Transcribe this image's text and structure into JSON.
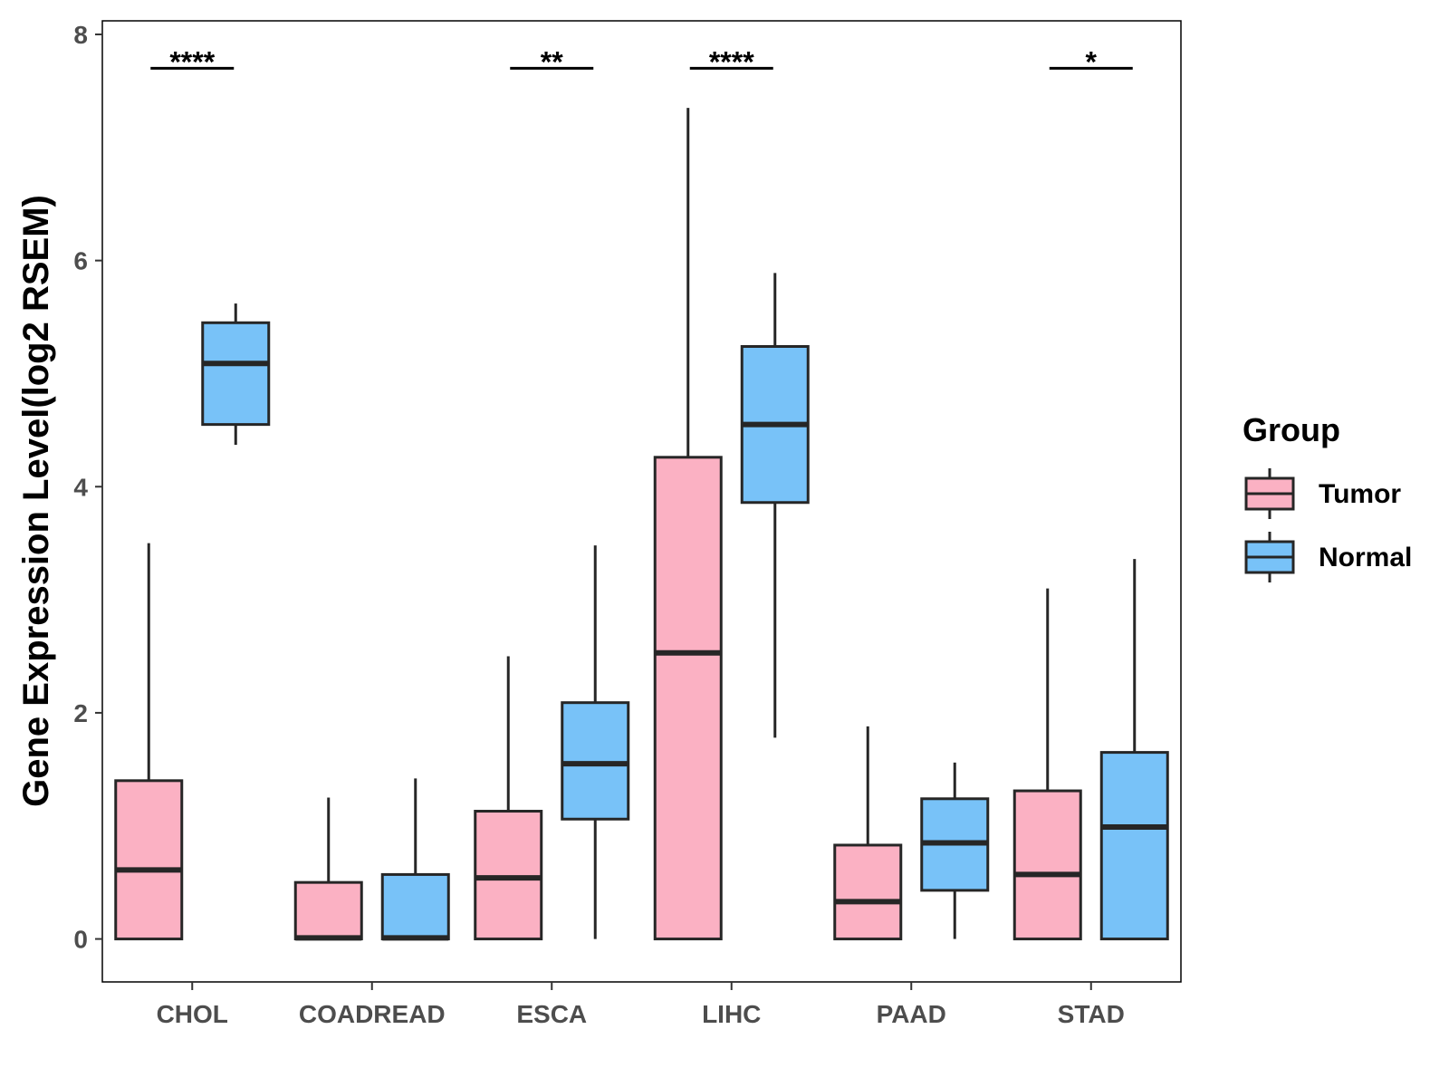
{
  "chart_data": {
    "type": "box",
    "xlabel": "",
    "ylabel": "Gene Expression Level(log2 RSEM)",
    "ylim": [
      -0.38,
      8.12
    ],
    "yticks": [
      0,
      2,
      4,
      6,
      8
    ],
    "categories": [
      "CHOL",
      "COADREAD",
      "ESCA",
      "LIHC",
      "PAAD",
      "STAD"
    ],
    "legend": {
      "title": "Group",
      "position": "right",
      "entries": [
        {
          "name": "Tumor",
          "color": "#FBB1C3"
        },
        {
          "name": "Normal",
          "color": "#78C2F8"
        }
      ]
    },
    "series": [
      {
        "name": "Tumor",
        "color": "#FBB1C3",
        "boxes": [
          {
            "category": "CHOL",
            "min": 0,
            "q1": 0,
            "median": 0.61,
            "q3": 1.4,
            "max": 3.5
          },
          {
            "category": "COADREAD",
            "min": 0,
            "q1": 0,
            "median": 0.01,
            "q3": 0.5,
            "max": 1.25
          },
          {
            "category": "ESCA",
            "min": 0,
            "q1": 0,
            "median": 0.54,
            "q3": 1.13,
            "max": 2.5
          },
          {
            "category": "LIHC",
            "min": 0,
            "q1": 0,
            "median": 2.53,
            "q3": 4.26,
            "max": 7.35
          },
          {
            "category": "PAAD",
            "min": 0,
            "q1": 0,
            "median": 0.33,
            "q3": 0.83,
            "max": 1.88
          },
          {
            "category": "STAD",
            "min": 0,
            "q1": 0,
            "median": 0.57,
            "q3": 1.31,
            "max": 3.1
          }
        ]
      },
      {
        "name": "Normal",
        "color": "#78C2F8",
        "boxes": [
          {
            "category": "CHOL",
            "min": 4.37,
            "q1": 4.55,
            "median": 5.09,
            "q3": 5.45,
            "max": 5.62
          },
          {
            "category": "COADREAD",
            "min": 0,
            "q1": 0,
            "median": 0.01,
            "q3": 0.57,
            "max": 1.42
          },
          {
            "category": "ESCA",
            "min": 0,
            "q1": 1.06,
            "median": 1.55,
            "q3": 2.09,
            "max": 3.48
          },
          {
            "category": "LIHC",
            "min": 1.78,
            "q1": 3.86,
            "median": 4.55,
            "q3": 5.24,
            "max": 5.89
          },
          {
            "category": "PAAD",
            "min": 0,
            "q1": 0.43,
            "median": 0.85,
            "q3": 1.24,
            "max": 1.56
          },
          {
            "category": "STAD",
            "min": 0,
            "q1": 0,
            "median": 0.99,
            "q3": 1.65,
            "max": 3.36
          }
        ]
      }
    ],
    "significance": [
      {
        "category": "CHOL",
        "label": "****",
        "y": 7.7
      },
      {
        "category": "COADREAD",
        "label": "",
        "y": 7.7
      },
      {
        "category": "ESCA",
        "label": "**",
        "y": 7.7
      },
      {
        "category": "LIHC",
        "label": "****",
        "y": 7.7
      },
      {
        "category": "PAAD",
        "label": "",
        "y": 7.7
      },
      {
        "category": "STAD",
        "label": "*",
        "y": 7.7
      }
    ]
  }
}
